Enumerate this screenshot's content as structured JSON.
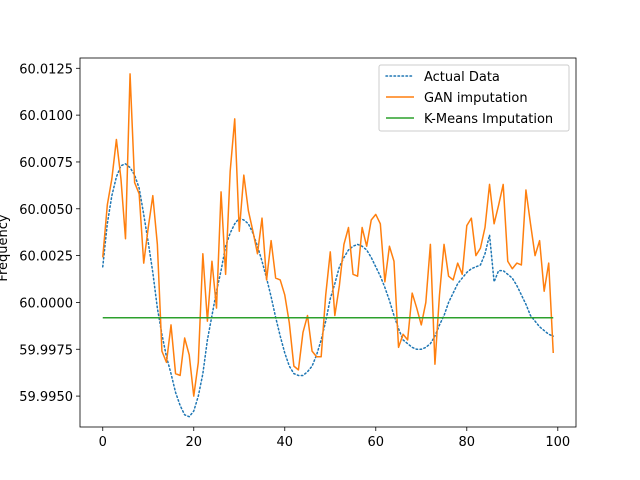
{
  "chart_data": {
    "type": "line",
    "title": "",
    "xlabel": "",
    "ylabel": "Frequency",
    "xlim": [
      -5,
      104
    ],
    "ylim": [
      59.99335,
      60.01305
    ],
    "xticks": [
      0,
      20,
      40,
      60,
      80,
      100
    ],
    "yticks": [
      59.995,
      59.9975,
      60.0,
      60.0025,
      60.005,
      60.0075,
      60.01,
      60.0125
    ],
    "ytick_labels": [
      "59.9950",
      "59.9975",
      "60.0000",
      "60.0025",
      "60.0050",
      "60.0075",
      "60.0100",
      "60.0125"
    ],
    "grid": false,
    "legend_position": "top-right",
    "series": [
      {
        "name": "Actual Data",
        "color": "#1f77b4",
        "style": "dotted",
        "x": [
          0,
          1,
          2,
          3,
          4,
          5,
          6,
          7,
          8,
          9,
          10,
          11,
          12,
          13,
          14,
          15,
          16,
          17,
          18,
          19,
          20,
          21,
          22,
          23,
          24,
          25,
          26,
          27,
          28,
          29,
          30,
          31,
          32,
          33,
          34,
          35,
          36,
          37,
          38,
          39,
          40,
          41,
          42,
          43,
          44,
          45,
          46,
          47,
          48,
          49,
          50,
          51,
          52,
          53,
          54,
          55,
          56,
          57,
          58,
          59,
          60,
          61,
          62,
          63,
          64,
          65,
          66,
          67,
          68,
          69,
          70,
          71,
          72,
          73,
          74,
          75,
          76,
          77,
          78,
          79,
          80,
          81,
          82,
          83,
          84,
          85,
          86,
          87,
          88,
          89,
          90,
          91,
          92,
          93,
          94,
          95,
          96,
          97,
          98,
          99
        ],
        "values": [
          60.0019,
          60.0042,
          60.0057,
          60.0067,
          60.0073,
          60.0074,
          60.0072,
          60.0068,
          60.0061,
          60.0047,
          60.0032,
          60.0016,
          59.9997,
          59.9983,
          59.9971,
          59.9962,
          59.9952,
          59.9945,
          59.994,
          59.9939,
          59.9942,
          59.995,
          59.9962,
          59.998,
          59.9993,
          60.0006,
          60.0017,
          60.003,
          60.0037,
          60.0042,
          60.0045,
          60.0044,
          60.0042,
          60.0037,
          60.003,
          60.0022,
          60.0013,
          60.0003,
          59.9992,
          59.9982,
          59.9973,
          59.9966,
          59.9962,
          59.9961,
          59.9961,
          59.9963,
          59.9966,
          59.9972,
          59.998,
          59.999,
          60.0002,
          60.001,
          60.0019,
          60.0024,
          60.0028,
          60.003,
          60.0031,
          60.003,
          60.0028,
          60.0024,
          60.0019,
          60.0014,
          60.0008,
          60.0001,
          59.9993,
          59.9986,
          59.998,
          59.9978,
          59.9976,
          59.9975,
          59.9975,
          59.9976,
          59.9978,
          59.9982,
          59.9988,
          59.9993,
          60.0,
          60.0005,
          60.001,
          60.0013,
          60.0016,
          60.0018,
          60.0019,
          60.002,
          60.0026,
          60.0036,
          60.0011,
          60.0017,
          60.0017,
          60.0015,
          60.0013,
          60.0009,
          60.0004,
          59.9999,
          59.9993,
          59.999,
          59.9987,
          59.9985,
          59.9983,
          59.9982
        ]
      },
      {
        "name": "GAN imputation",
        "color": "#ff7f0e",
        "style": "solid",
        "x": [
          0,
          1,
          2,
          3,
          4,
          5,
          6,
          7,
          8,
          9,
          10,
          11,
          12,
          13,
          14,
          15,
          16,
          17,
          18,
          19,
          20,
          21,
          22,
          23,
          24,
          25,
          26,
          27,
          28,
          29,
          30,
          31,
          32,
          33,
          34,
          35,
          36,
          37,
          38,
          39,
          40,
          41,
          42,
          43,
          44,
          45,
          46,
          47,
          48,
          49,
          50,
          51,
          52,
          53,
          54,
          55,
          56,
          57,
          58,
          59,
          60,
          61,
          62,
          63,
          64,
          65,
          66,
          67,
          68,
          69,
          70,
          71,
          72,
          73,
          74,
          75,
          76,
          77,
          78,
          79,
          80,
          81,
          82,
          83,
          84,
          85,
          86,
          87,
          88,
          89,
          90,
          91,
          92,
          93,
          94,
          95,
          96,
          97,
          98,
          99
        ],
        "values": [
          60.0024,
          60.0052,
          60.0066,
          60.0087,
          60.0066,
          60.0034,
          60.0122,
          60.0064,
          60.0058,
          60.0021,
          60.004,
          60.0057,
          60.0031,
          59.9974,
          59.9968,
          59.9988,
          59.9962,
          59.9961,
          59.9981,
          59.9972,
          59.995,
          59.9968,
          60.0026,
          59.999,
          60.0022,
          59.9997,
          60.0059,
          60.0015,
          60.007,
          60.0098,
          60.0038,
          60.0068,
          60.0049,
          60.0038,
          60.0026,
          60.0045,
          60.0012,
          60.0033,
          60.0013,
          60.0012,
          60.0004,
          59.9989,
          59.9966,
          59.9964,
          59.9984,
          59.9993,
          59.9974,
          59.9971,
          59.9971,
          60.0004,
          60.0027,
          59.9993,
          60.0009,
          60.0031,
          60.004,
          60.0015,
          60.0014,
          60.004,
          60.003,
          60.0044,
          60.0047,
          60.0042,
          60.0011,
          60.003,
          60.0022,
          59.9976,
          59.9983,
          59.998,
          60.0005,
          59.9997,
          59.9988,
          60.0,
          60.0031,
          59.9967,
          60.0004,
          60.0031,
          60.0014,
          60.0012,
          60.0021,
          60.0015,
          60.0041,
          60.0045,
          60.0025,
          60.0029,
          60.004,
          60.0063,
          60.0042,
          60.0052,
          60.0063,
          60.0022,
          60.0018,
          60.0021,
          60.002,
          60.006,
          60.0042,
          60.0025,
          60.0033,
          60.0006,
          60.0021,
          59.9973
        ]
      },
      {
        "name": "K-Means Imputation",
        "color": "#2ca02c",
        "style": "solid",
        "x": [
          0,
          99
        ],
        "values": [
          59.99918,
          59.99918
        ]
      }
    ]
  }
}
